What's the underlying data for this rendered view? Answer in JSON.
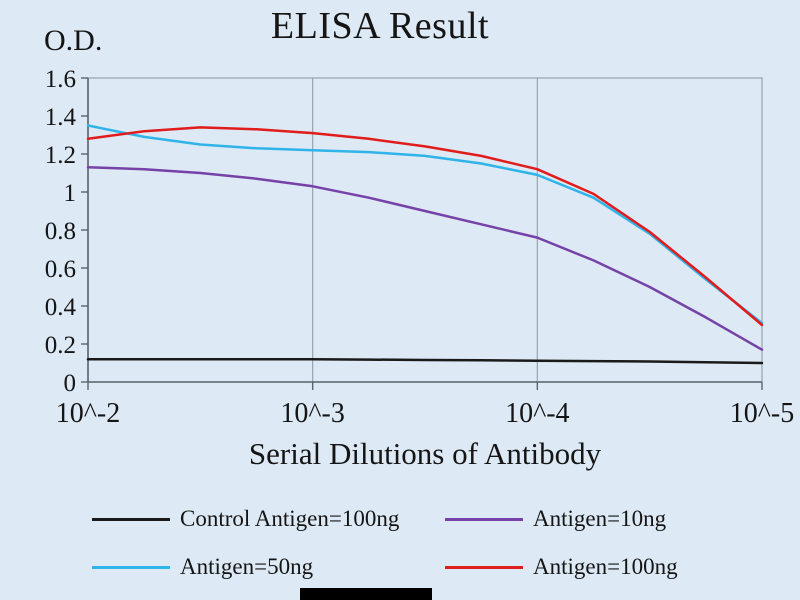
{
  "chart_data": {
    "type": "line",
    "title": "ELISA Result",
    "xlabel": "Serial Dilutions of Antibody",
    "ylabel": "O.D.",
    "x_ticks": [
      "10^-2",
      "10^-3",
      "10^-4",
      "10^-5"
    ],
    "y_ticks": [
      "0",
      "0.2",
      "0.4",
      "0.6",
      "0.8",
      "1",
      "1.2",
      "1.4",
      "1.6"
    ],
    "ylim": [
      0,
      1.6
    ],
    "grid": "vertical-only",
    "legend_position": "bottom",
    "x": [
      0,
      0.25,
      0.5,
      0.75,
      1,
      1.25,
      1.5,
      1.75,
      2,
      2.25,
      2.5,
      2.75,
      3
    ],
    "series": [
      {
        "name": "Control Antigen=100ng",
        "color": "#1a1a1a",
        "values": [
          0.12,
          0.12,
          0.12,
          0.12,
          0.12,
          0.118,
          0.116,
          0.114,
          0.112,
          0.11,
          0.108,
          0.104,
          0.1
        ]
      },
      {
        "name": "Antigen=10ng",
        "color": "#7642a8",
        "values": [
          1.13,
          1.12,
          1.1,
          1.07,
          1.03,
          0.97,
          0.9,
          0.83,
          0.76,
          0.64,
          0.5,
          0.34,
          0.17
        ]
      },
      {
        "name": "Antigen=50ng",
        "color": "#2fb4e9",
        "values": [
          1.35,
          1.29,
          1.25,
          1.23,
          1.22,
          1.21,
          1.19,
          1.15,
          1.09,
          0.97,
          0.78,
          0.54,
          0.31
        ]
      },
      {
        "name": "Antigen=100ng",
        "color": "#e11c1c",
        "values": [
          1.28,
          1.32,
          1.34,
          1.33,
          1.31,
          1.28,
          1.24,
          1.19,
          1.12,
          0.99,
          0.79,
          0.55,
          0.3
        ]
      }
    ],
    "axis_color": "#5a646c",
    "grid_color": "#98a3ac"
  }
}
